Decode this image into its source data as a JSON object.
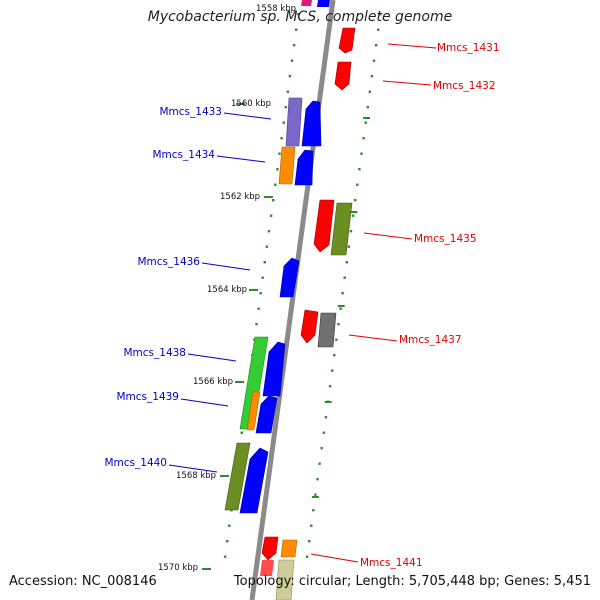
{
  "title": "Mycobacterium sp. MCS, complete genome",
  "footer": {
    "accession": "Accession: NC_008146",
    "summary": "Topology: circular; Length: 5,705,448 bp; Genes: 5,451"
  },
  "colors": {
    "backbone": "#8a8a8a",
    "tick": "#2e8b2e",
    "forward_label": "#0000cc",
    "reverse_label": "#dd0000"
  },
  "ruler": [
    {
      "label": "1558 kbp"
    },
    {
      "label": "1560 kbp"
    },
    {
      "label": "1562 kbp"
    },
    {
      "label": "1564 kbp"
    },
    {
      "label": "1566 kbp"
    },
    {
      "label": "1568 kbp"
    },
    {
      "label": "1570 kbp"
    }
  ],
  "genes": [
    {
      "name": "Mmcs_1431",
      "strand": "reverse"
    },
    {
      "name": "Mmcs_1432",
      "strand": "reverse"
    },
    {
      "name": "Mmcs_1433",
      "strand": "forward"
    },
    {
      "name": "Mmcs_1434",
      "strand": "forward"
    },
    {
      "name": "Mmcs_1435",
      "strand": "reverse"
    },
    {
      "name": "Mmcs_1436",
      "strand": "forward"
    },
    {
      "name": "Mmcs_1437",
      "strand": "reverse"
    },
    {
      "name": "Mmcs_1438",
      "strand": "forward"
    },
    {
      "name": "Mmcs_1439",
      "strand": "forward"
    },
    {
      "name": "Mmcs_1440",
      "strand": "forward"
    },
    {
      "name": "Mmcs_1441",
      "strand": "reverse"
    }
  ]
}
